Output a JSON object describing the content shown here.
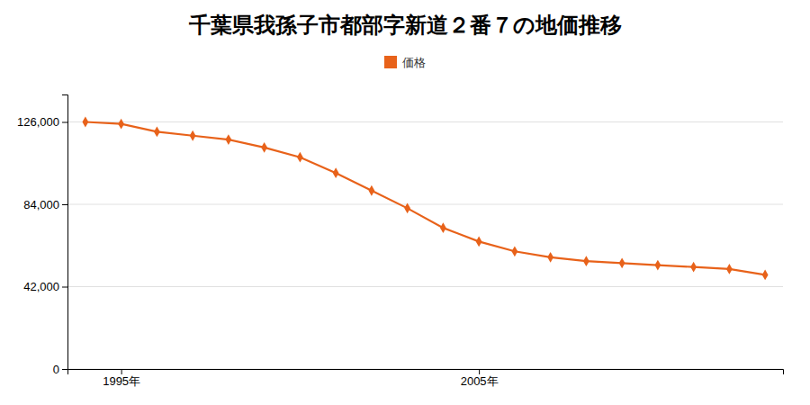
{
  "chart_data": {
    "type": "line",
    "title": "千葉県我孫子市都部字新道２番７の地価推移",
    "x": [
      1994,
      1995,
      1996,
      1997,
      1998,
      1999,
      2000,
      2001,
      2002,
      2003,
      2004,
      2005,
      2006,
      2007,
      2008,
      2009,
      2010,
      2011,
      2012,
      2013
    ],
    "series": [
      {
        "name": "価格",
        "color": "#e8621a",
        "marker": "diamond",
        "values": [
          126000,
          125000,
          121000,
          119000,
          117000,
          113000,
          108000,
          100000,
          91000,
          82000,
          72000,
          65000,
          60000,
          57000,
          55000,
          54000,
          53000,
          52000,
          51000,
          48000
        ]
      }
    ],
    "xlim": [
      1993.5,
      2013.5
    ],
    "xticks": [
      {
        "value": 1995,
        "label": "1995年"
      },
      {
        "value": 2005,
        "label": "2005年"
      }
    ],
    "ylim": [
      0,
      140000
    ],
    "yticks": [
      0,
      {
        "value": 42000,
        "label": "42,000"
      },
      {
        "value": 84000,
        "label": "84,000"
      },
      {
        "value": 126000,
        "label": "126,000"
      }
    ],
    "grid": true,
    "legend": "top"
  }
}
